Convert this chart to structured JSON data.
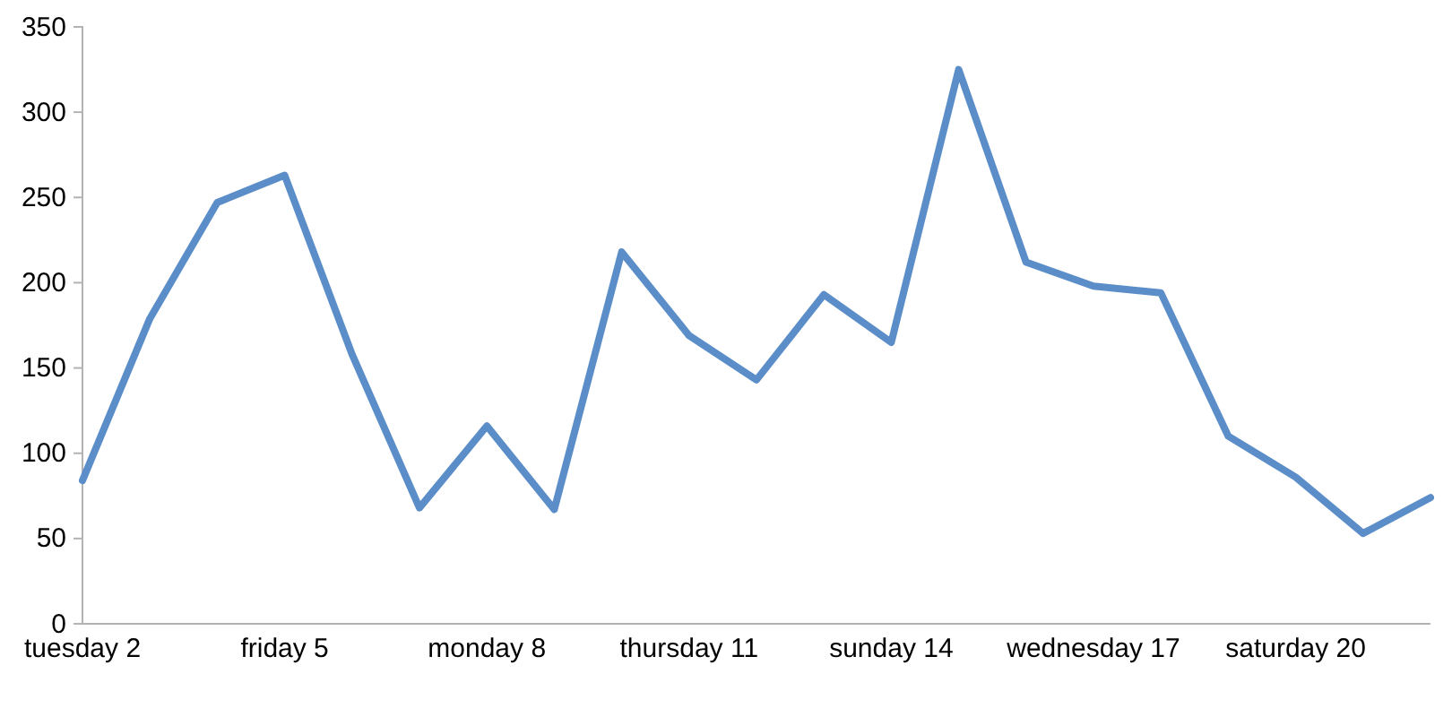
{
  "chart_data": {
    "type": "line",
    "categories": [
      "tuesday 2",
      null,
      null,
      "friday 5",
      null,
      null,
      "monday 8",
      null,
      null,
      "thursday 11",
      null,
      null,
      "sunday 14",
      null,
      null,
      "wednesday 17",
      null,
      null,
      "saturday 20",
      null,
      null
    ],
    "series": [
      {
        "color": "#5b8ec9",
        "values": [
          84,
          179,
          247,
          263,
          158,
          68,
          116,
          67,
          218,
          169,
          143,
          193,
          165,
          325,
          212,
          198,
          194,
          110,
          86,
          53,
          74
        ]
      }
    ],
    "ylim": [
      0,
      350
    ],
    "yticks": [
      0,
      50,
      100,
      150,
      200,
      250,
      300,
      350
    ],
    "grid": false,
    "marker": "none",
    "line_style": "solid"
  }
}
